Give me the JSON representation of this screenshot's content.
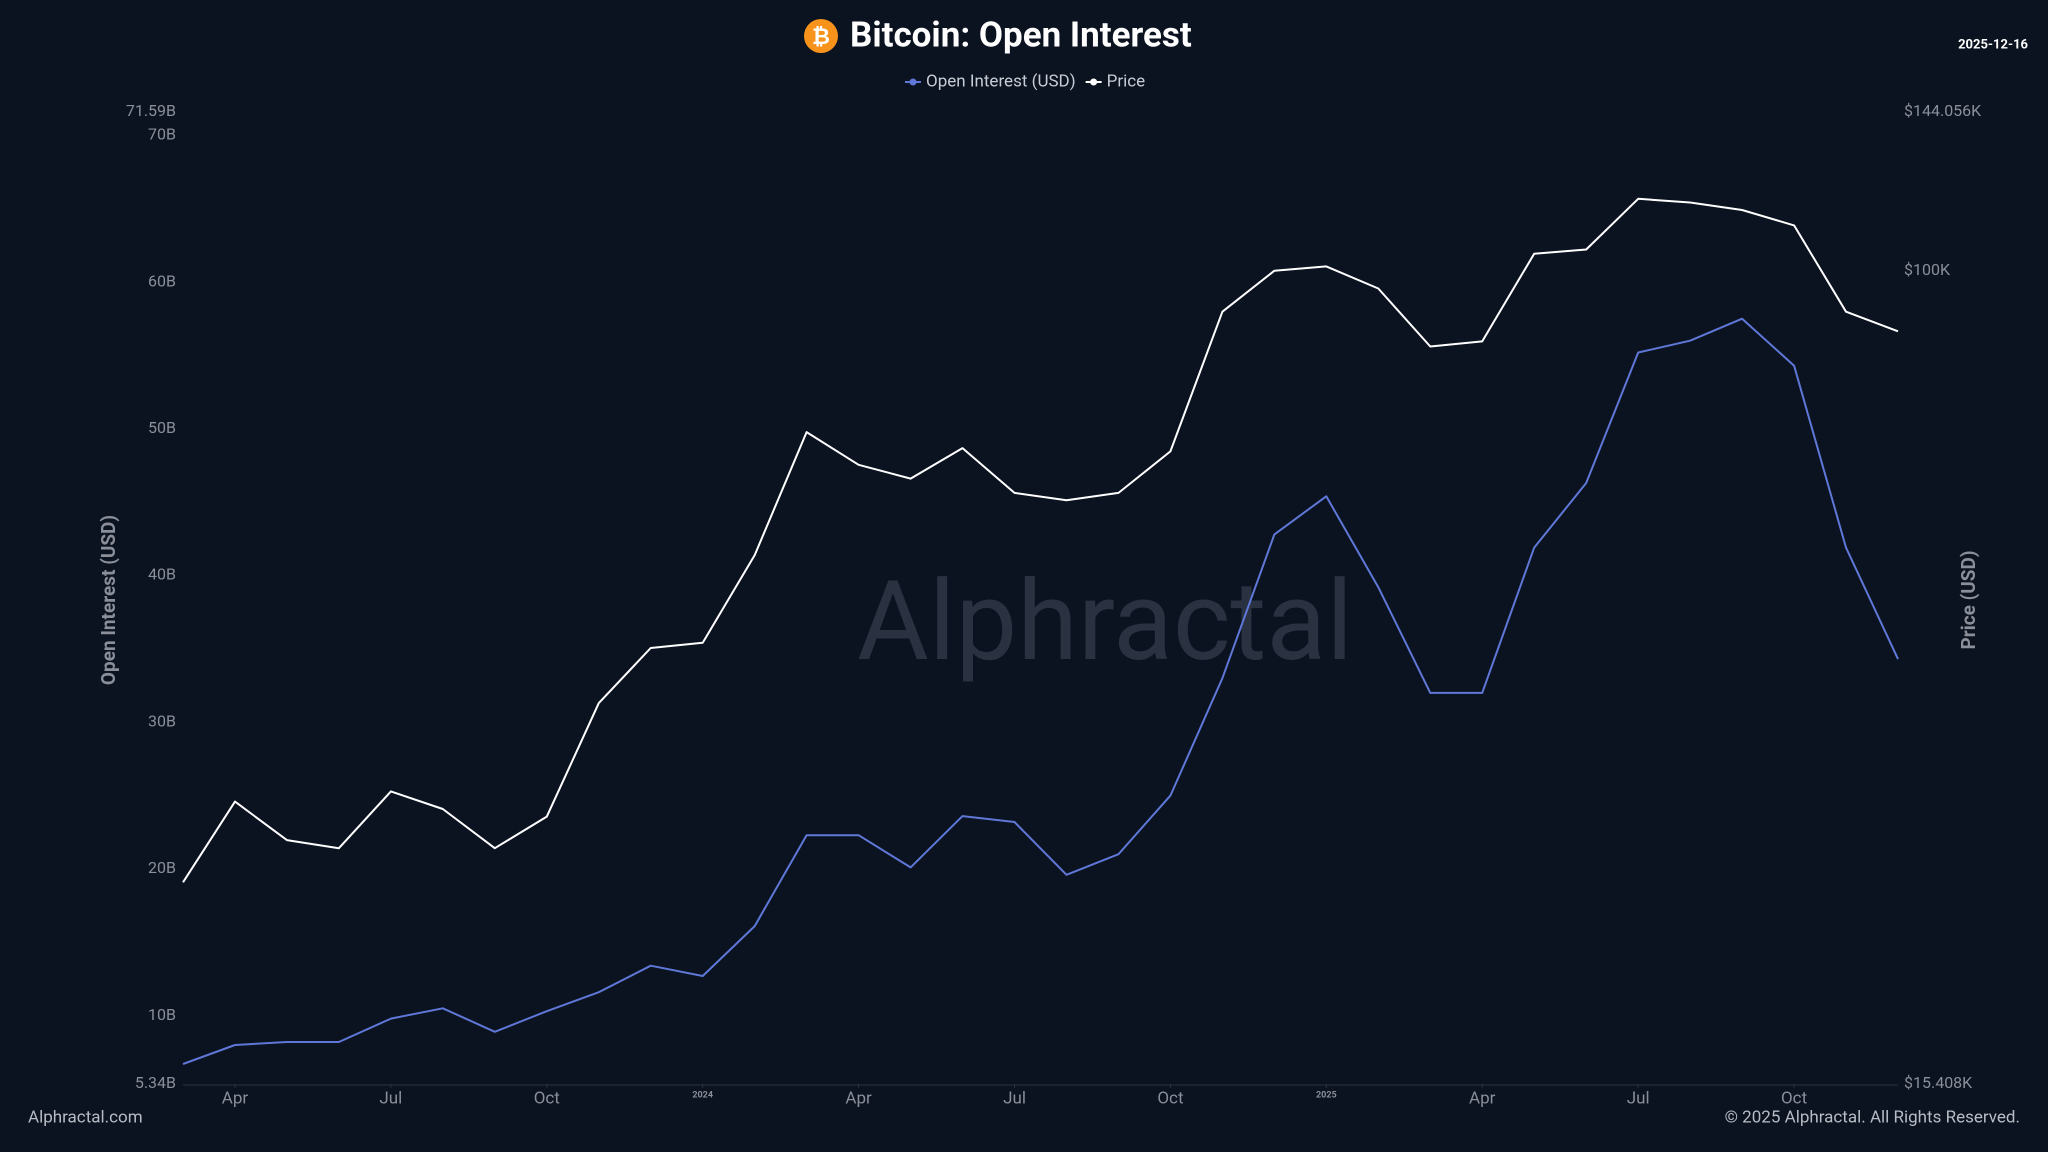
{
  "chart_data": {
    "type": "line",
    "title": "Bitcoin: Open Interest",
    "date": "2025-12-16",
    "watermark": "Alphractal",
    "footer_left": "Alphractal.com",
    "footer_right": "© 2025 Alphractal. All Rights Reserved.",
    "y_label": "Open Interest (USD)",
    "y2_label": "Price (USD)",
    "x": [
      "2023-03",
      "2023-04",
      "2023-05",
      "2023-06",
      "2023-07",
      "2023-08",
      "2023-09",
      "2023-10",
      "2023-11",
      "2023-12",
      "2024-01",
      "2024-02",
      "2024-03",
      "2024-04",
      "2024-05",
      "2024-06",
      "2024-07",
      "2024-08",
      "2024-09",
      "2024-10",
      "2024-11",
      "2024-12",
      "2025-01",
      "2025-02",
      "2025-03",
      "2025-04",
      "2025-05",
      "2025-06",
      "2025-07",
      "2025-08",
      "2025-09",
      "2025-10",
      "2025-11",
      "2025-12"
    ],
    "xlim": [
      "2023-03",
      "2025-12"
    ],
    "xticks": [
      {
        "value": "2023-04",
        "label": "Apr"
      },
      {
        "value": "2023-07",
        "label": "Jul"
      },
      {
        "value": "2023-10",
        "label": "Oct"
      },
      {
        "value": "2024-01",
        "label": "2024"
      },
      {
        "value": "2024-04",
        "label": "Apr"
      },
      {
        "value": "2024-07",
        "label": "Jul"
      },
      {
        "value": "2024-10",
        "label": "Oct"
      },
      {
        "value": "2025-01",
        "label": "2025"
      },
      {
        "value": "2025-04",
        "label": "Apr"
      },
      {
        "value": "2025-07",
        "label": "Jul"
      },
      {
        "value": "2025-10",
        "label": "Oct"
      }
    ],
    "ylim": [
      5.34,
      71.59
    ],
    "yticks": [
      {
        "value": 5.34,
        "label": "5.34B"
      },
      {
        "value": 10,
        "label": "10B"
      },
      {
        "value": 20,
        "label": "20B"
      },
      {
        "value": 30,
        "label": "30B"
      },
      {
        "value": 40,
        "label": "40B"
      },
      {
        "value": 50,
        "label": "50B"
      },
      {
        "value": 60,
        "label": "60B"
      },
      {
        "value": 70,
        "label": "70B"
      },
      {
        "value": 71.59,
        "label": "71.59B"
      }
    ],
    "y2lim": [
      15408,
      144056
    ],
    "y2log": true,
    "y2ticks": [
      {
        "value": 15408,
        "label": "$15.408K"
      },
      {
        "value": 100000,
        "label": "$100K"
      },
      {
        "value": 144056,
        "label": "$144.056K"
      }
    ],
    "series": [
      {
        "name": "Open Interest (USD)",
        "color": "#5f78d8",
        "values": [
          6.7,
          8.0,
          8.2,
          8.2,
          9.8,
          10.5,
          8.9,
          10.3,
          11.6,
          13.4,
          12.7,
          16.1,
          22.3,
          22.3,
          20.1,
          23.6,
          23.2,
          19.6,
          21.0,
          25.0,
          33.0,
          42.8,
          45.4,
          39.2,
          32.0,
          32.0,
          41.9,
          46.3,
          55.2,
          56.0,
          57.5,
          54.3,
          41.9,
          34.3
        ]
      },
      {
        "name": "Price",
        "color": "#ffffff",
        "axis": "y2",
        "values": [
          24500,
          29500,
          27000,
          26500,
          30200,
          29000,
          26500,
          28500,
          37000,
          42000,
          42500,
          52000,
          69000,
          64000,
          62000,
          66500,
          60000,
          59000,
          60000,
          66000,
          91000,
          100000,
          101000,
          96000,
          84000,
          85000,
          104000,
          105000,
          118000,
          117000,
          115000,
          111000,
          91000,
          87000
        ]
      }
    ]
  }
}
